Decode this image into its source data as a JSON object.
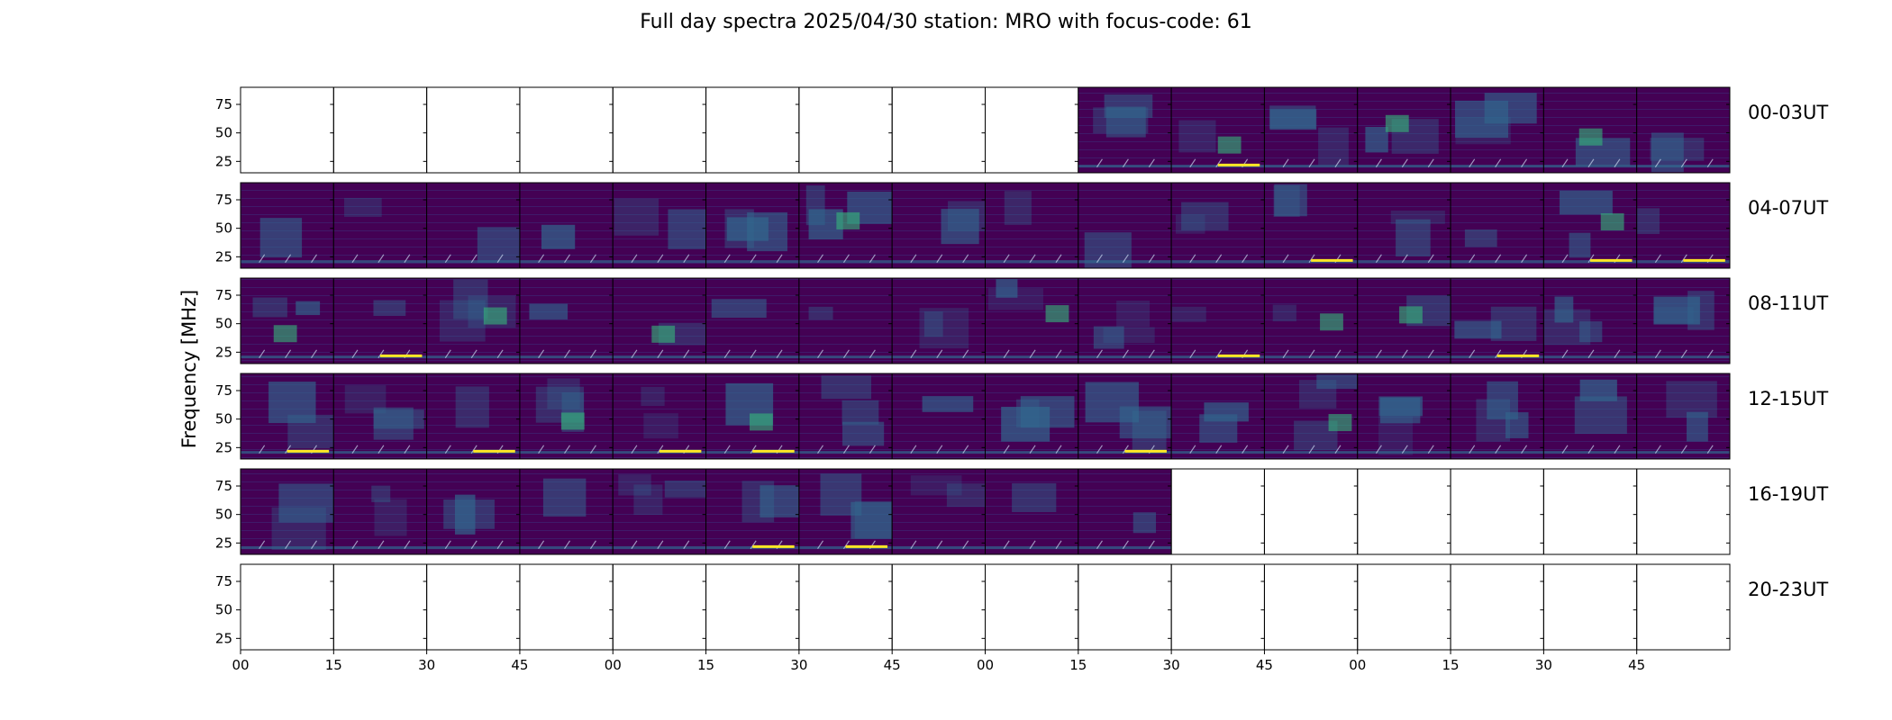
{
  "chart_data": {
    "type": "heatmap",
    "title": "Full day spectra 2025/04/30 station: MRO with focus-code: 61",
    "ylabel": "Frequency [MHz]",
    "xlabel": "",
    "y_ticks": [
      "25",
      "50",
      "75"
    ],
    "x_ticks": [
      "00",
      "15",
      "30",
      "45",
      "00",
      "15",
      "30",
      "45",
      "00",
      "15",
      "30",
      "45",
      "00",
      "15",
      "30",
      "45"
    ],
    "colormap": "viridis",
    "colors": {
      "background": "#440154",
      "mid": "#31688e",
      "high": "#35b779",
      "peak": "#fde725"
    },
    "rows": [
      {
        "label": "00-03UT",
        "data_panels": [
          9,
          10,
          11,
          12,
          13,
          14,
          15
        ]
      },
      {
        "label": "04-07UT",
        "data_panels": [
          0,
          1,
          2,
          3,
          4,
          5,
          6,
          7,
          8,
          9,
          10,
          11,
          12,
          13,
          14,
          15
        ]
      },
      {
        "label": "08-11UT",
        "data_panels": [
          0,
          1,
          2,
          3,
          4,
          5,
          6,
          7,
          8,
          9,
          10,
          11,
          12,
          13,
          14,
          15
        ]
      },
      {
        "label": "12-15UT",
        "data_panels": [
          0,
          1,
          2,
          3,
          4,
          5,
          6,
          7,
          8,
          9,
          10,
          11,
          12,
          13,
          14,
          15
        ]
      },
      {
        "label": "16-19UT",
        "data_panels": [
          0,
          1,
          2,
          3,
          4,
          5,
          6,
          7,
          8,
          9
        ]
      },
      {
        "label": "20-23UT",
        "data_panels": []
      }
    ]
  }
}
